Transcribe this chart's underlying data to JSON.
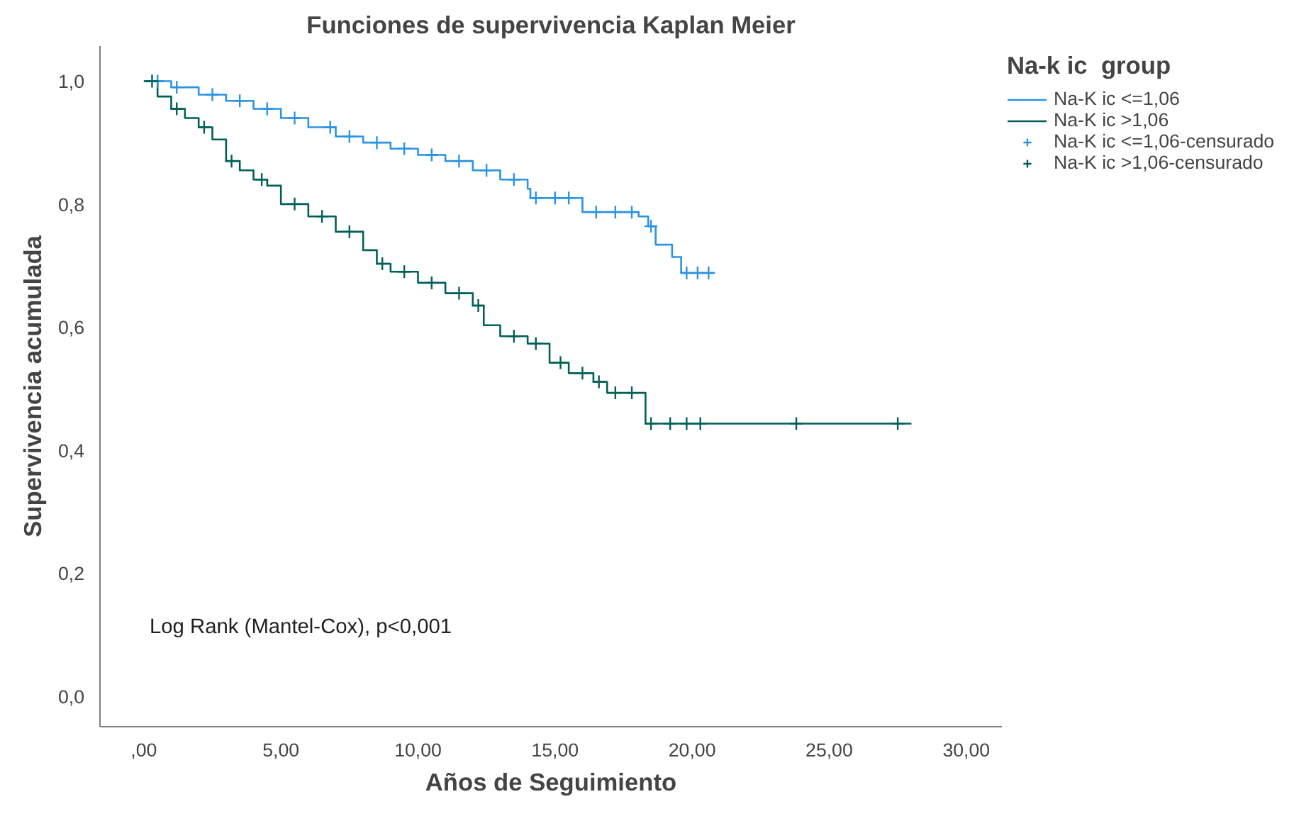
{
  "chart_data": {
    "type": "step",
    "title": "Funciones de supervivencia Kaplan Meier",
    "xlabel": "Años de Seguimiento",
    "ylabel": "Supervivencia acumulada",
    "legend_title": "Na-k ic  group",
    "annotations": [
      "Log Rank (Mantel-Cox), p<0,001"
    ],
    "xlim": [
      -1.6,
      31.3
    ],
    "ylim": [
      -0.05,
      1.057
    ],
    "xticks": [
      {
        "value": 0,
        "label": ",00"
      },
      {
        "value": 5,
        "label": "5,00"
      },
      {
        "value": 10,
        "label": "10,00"
      },
      {
        "value": 15,
        "label": "15,00"
      },
      {
        "value": 20,
        "label": "20,00"
      },
      {
        "value": 25,
        "label": "25,00"
      },
      {
        "value": 30,
        "label": "30,00"
      }
    ],
    "yticks": [
      {
        "value": 0,
        "label": "0,0"
      },
      {
        "value": 0.2,
        "label": "0,2"
      },
      {
        "value": 0.4,
        "label": "0,4"
      },
      {
        "value": 0.6,
        "label": "0,6"
      },
      {
        "value": 0.8,
        "label": "0,8"
      },
      {
        "value": 1.0,
        "label": "1,0"
      }
    ],
    "grid": false,
    "legend": "top right",
    "series": [
      {
        "name": "Na-K ic <=1,06",
        "color": "#2b93e3",
        "x": [
          0,
          1,
          2,
          3,
          4,
          5,
          6,
          7,
          8,
          9,
          10,
          11,
          12,
          13,
          14.0,
          14.1,
          16.0,
          18.05,
          18.4,
          18.67,
          19.27,
          19.6,
          20.8
        ],
        "values": [
          1.0,
          0.99,
          0.978,
          0.968,
          0.955,
          0.94,
          0.925,
          0.91,
          0.9,
          0.89,
          0.88,
          0.87,
          0.855,
          0.84,
          0.825,
          0.81,
          0.787,
          0.78,
          0.764,
          0.734,
          0.714,
          0.688,
          0.688
        ]
      },
      {
        "name": "Na-K ic >1,06",
        "color": "#006058",
        "x": [
          0,
          0.5,
          1,
          1.5,
          2,
          2.5,
          3,
          3.5,
          4,
          4.5,
          5,
          6,
          7,
          8,
          8.5,
          9,
          10,
          11,
          12,
          12.4,
          13,
          14,
          14.8,
          15.5,
          16.4,
          16.9,
          18.3,
          28.0
        ],
        "values": [
          1.0,
          0.975,
          0.955,
          0.94,
          0.925,
          0.905,
          0.87,
          0.855,
          0.84,
          0.83,
          0.8,
          0.78,
          0.755,
          0.725,
          0.703,
          0.69,
          0.672,
          0.655,
          0.635,
          0.603,
          0.585,
          0.573,
          0.542,
          0.525,
          0.511,
          0.493,
          0.443,
          0.443
        ]
      },
      {
        "name": "Na-K ic <=1,06-censurado",
        "type": "scatter",
        "marker": "cross",
        "color": "#2b93e3",
        "x": [
          0.5,
          1.2,
          2.5,
          3.5,
          4.5,
          5.5,
          6.8,
          7.5,
          8.5,
          9.5,
          10.5,
          11.5,
          12.5,
          13.5,
          14.3,
          15.0,
          15.5,
          16.5,
          17.2,
          17.8,
          18.5,
          19.8,
          20.2,
          20.6
        ],
        "values": [
          1.0,
          0.99,
          0.978,
          0.968,
          0.955,
          0.94,
          0.925,
          0.91,
          0.9,
          0.89,
          0.88,
          0.87,
          0.855,
          0.84,
          0.81,
          0.81,
          0.81,
          0.787,
          0.787,
          0.787,
          0.764,
          0.688,
          0.688,
          0.688
        ]
      },
      {
        "name": "Na-K ic >1,06-censurado",
        "type": "scatter",
        "marker": "cross",
        "color": "#006058",
        "x": [
          0.3,
          1.2,
          2.2,
          3.2,
          4.3,
          5.5,
          6.5,
          7.5,
          8.7,
          9.5,
          10.5,
          11.5,
          12.2,
          13.5,
          14.3,
          15.2,
          16.0,
          16.6,
          17.2,
          17.8,
          18.5,
          19.2,
          19.8,
          20.3,
          23.8,
          27.5
        ],
        "values": [
          1.0,
          0.955,
          0.925,
          0.87,
          0.84,
          0.8,
          0.78,
          0.755,
          0.703,
          0.69,
          0.672,
          0.655,
          0.635,
          0.585,
          0.573,
          0.542,
          0.525,
          0.511,
          0.493,
          0.493,
          0.443,
          0.443,
          0.443,
          0.443,
          0.443,
          0.443
        ]
      }
    ]
  }
}
